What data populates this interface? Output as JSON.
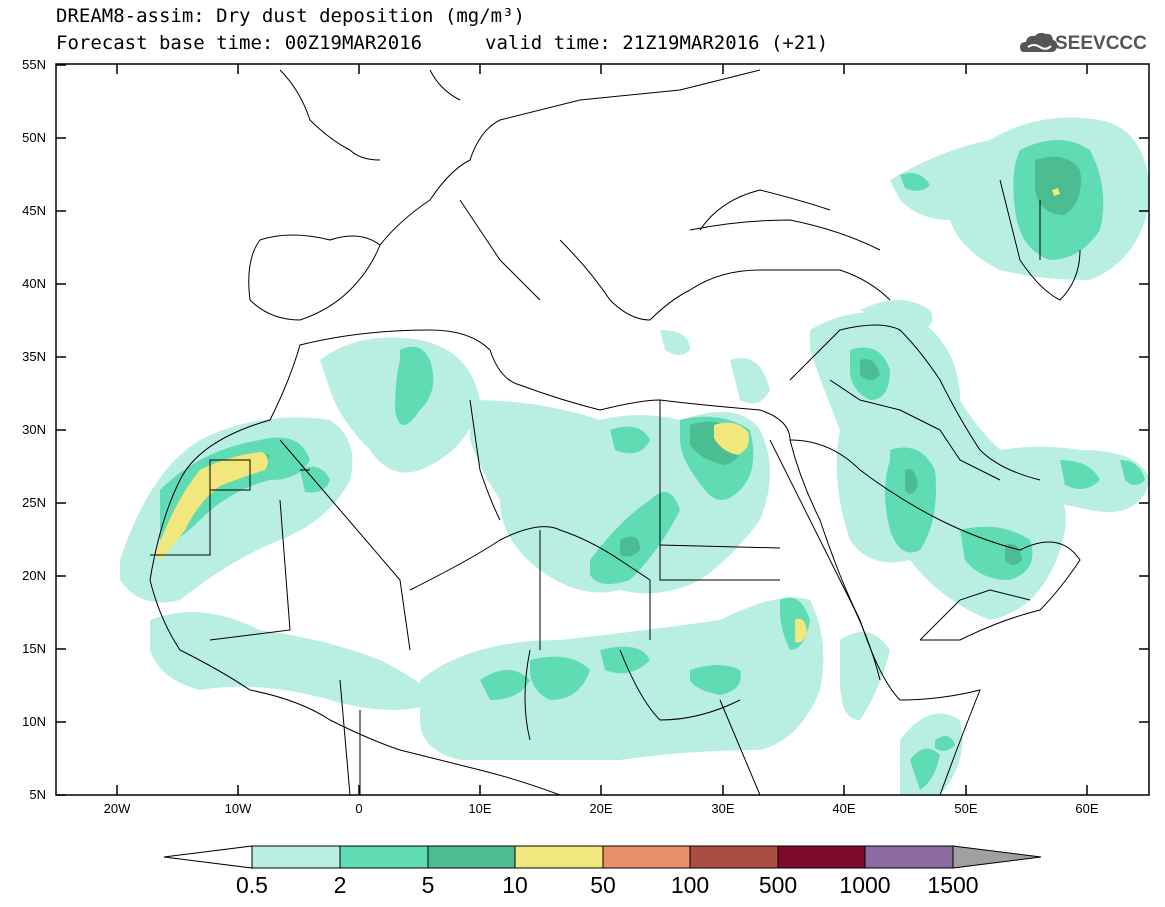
{
  "header": {
    "title_line1": "DREAM8-assim: Dry dust deposition (mg/m³)",
    "base_time": "Forecast base time: 00Z19MAR2016",
    "valid_time": "valid time: 21Z19MAR2016 (+21)"
  },
  "logo": {
    "text": "SEEVCCC",
    "icon": "cloud-logo-icon"
  },
  "axes": {
    "y_ticks": [
      "55N",
      "50N",
      "45N",
      "40N",
      "35N",
      "30N",
      "25N",
      "20N",
      "15N",
      "10N",
      "5N"
    ],
    "x_ticks": [
      "20W",
      "10W",
      "0",
      "10E",
      "20E",
      "30E",
      "40E",
      "50E",
      "60E"
    ]
  },
  "colorbar": {
    "labels": [
      "0.5",
      "2",
      "5",
      "10",
      "50",
      "100",
      "500",
      "1000",
      "1500"
    ],
    "colors": [
      "#b9efe3",
      "#5fdcb4",
      "#4cbd93",
      "#f2e77c",
      "#e89068",
      "#a94e40",
      "#7d0a2a",
      "#8a6aa0",
      "#a0a0a0"
    ],
    "under_color": "#ffffff",
    "over_color": "#a0a0a0"
  },
  "map_colors": {
    "light": "#b9efe3",
    "mid": "#5fdcb4",
    "dark": "#4cbd93",
    "yellow": "#f2e77c"
  }
}
